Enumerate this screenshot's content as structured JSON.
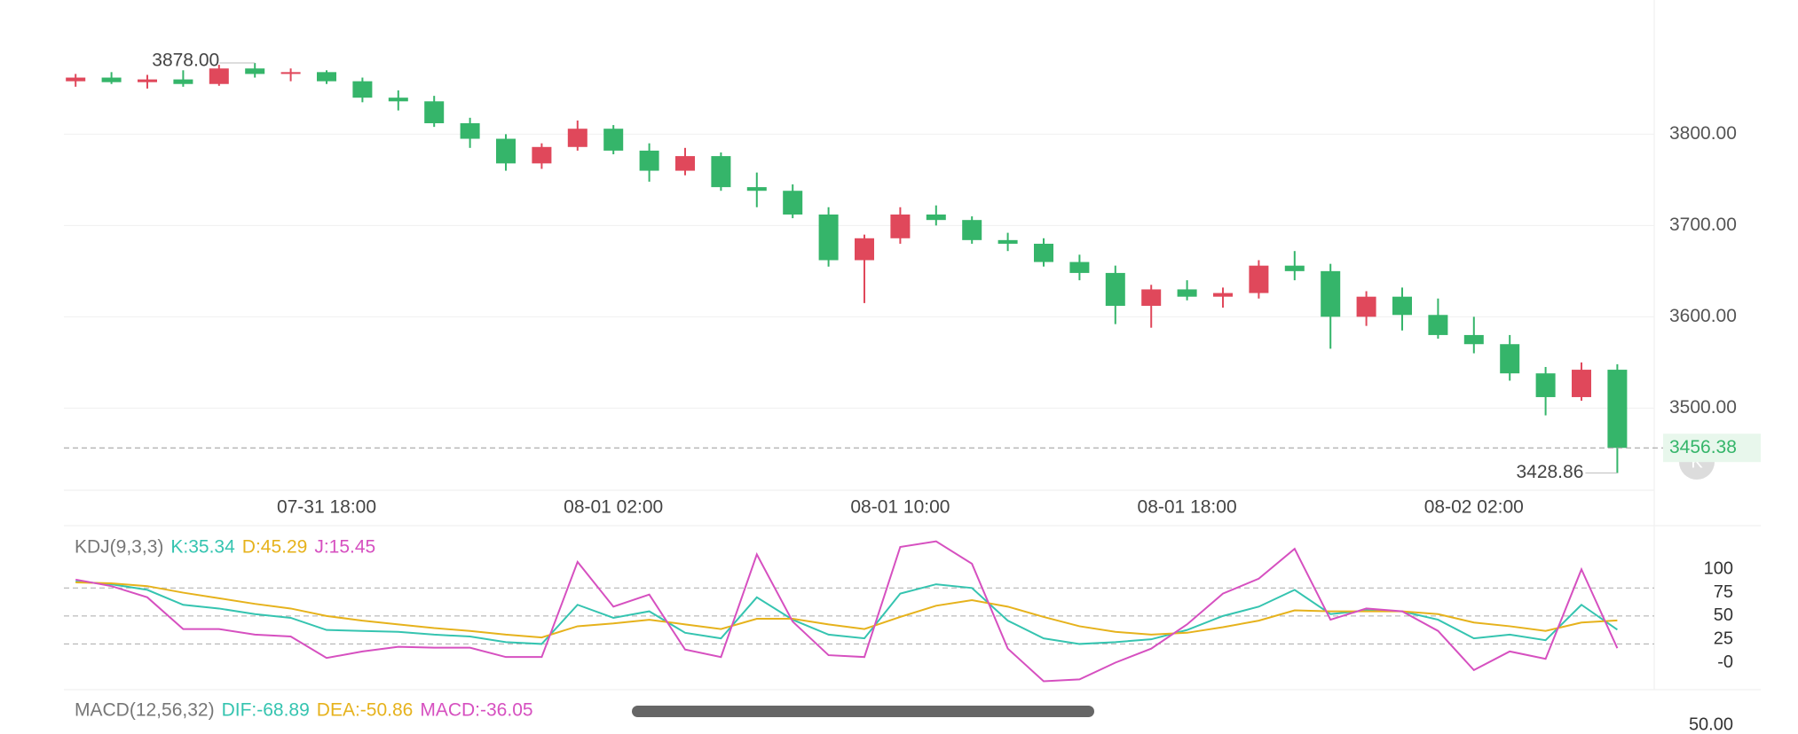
{
  "chart_data": [
    {
      "type": "candlestick",
      "categories": [
        null,
        null,
        null,
        null,
        null,
        null,
        null,
        "07-31 18:00",
        null,
        null,
        null,
        null,
        null,
        null,
        null,
        "08-01 02:00",
        null,
        null,
        null,
        null,
        null,
        null,
        null,
        "08-01 10:00",
        null,
        null,
        null,
        null,
        null,
        null,
        null,
        "08-01 18:00",
        null,
        null,
        null,
        null,
        null,
        null,
        null,
        "08-02 02:00",
        null,
        null,
        null,
        null
      ],
      "open": [
        3858,
        3862,
        3857,
        3860,
        3855,
        3872,
        3866,
        3868,
        3858,
        3840,
        3836,
        3812,
        3795,
        3768,
        3786,
        3806,
        3782,
        3760,
        3776,
        3742,
        3738,
        3712,
        3662,
        3686,
        3712,
        3706,
        3684,
        3680,
        3660,
        3648,
        3612,
        3630,
        3622,
        3626,
        3656,
        3650,
        3600,
        3622,
        3602,
        3580,
        3570,
        3538,
        3512,
        3542
      ],
      "high": [
        3866,
        3868,
        3865,
        3870,
        3876,
        3878,
        3872,
        3870,
        3862,
        3848,
        3842,
        3818,
        3800,
        3790,
        3815,
        3810,
        3790,
        3785,
        3780,
        3758,
        3745,
        3720,
        3690,
        3720,
        3722,
        3710,
        3692,
        3686,
        3668,
        3656,
        3635,
        3640,
        3632,
        3662,
        3672,
        3658,
        3628,
        3632,
        3620,
        3600,
        3580,
        3545,
        3550,
        3548
      ],
      "low": [
        3852,
        3855,
        3850,
        3852,
        3853,
        3862,
        3858,
        3855,
        3835,
        3826,
        3808,
        3785,
        3760,
        3762,
        3782,
        3778,
        3748,
        3755,
        3738,
        3720,
        3708,
        3655,
        3615,
        3680,
        3700,
        3680,
        3672,
        3655,
        3640,
        3592,
        3588,
        3618,
        3610,
        3620,
        3640,
        3565,
        3590,
        3585,
        3576,
        3560,
        3530,
        3492,
        3508,
        3428.86
      ],
      "close": [
        3862,
        3857,
        3860,
        3855,
        3872,
        3866,
        3868,
        3858,
        3840,
        3836,
        3812,
        3795,
        3768,
        3786,
        3806,
        3782,
        3760,
        3776,
        3742,
        3738,
        3712,
        3662,
        3686,
        3712,
        3706,
        3684,
        3680,
        3660,
        3648,
        3612,
        3630,
        3622,
        3626,
        3656,
        3650,
        3600,
        3622,
        3602,
        3580,
        3570,
        3538,
        3512,
        3542,
        3456.38
      ],
      "up_color": "#e0485b",
      "down_color": "#35b56a",
      "ylim": [
        3410,
        3947
      ],
      "yticks": [
        {
          "value": 3500,
          "label": "3500.00"
        },
        {
          "value": 3600,
          "label": "3600.00"
        },
        {
          "value": 3700,
          "label": "3700.00"
        },
        {
          "value": 3800,
          "label": "3800.00"
        }
      ],
      "grid": true,
      "annotations": [
        {
          "value": 3878,
          "label": "3878.00"
        },
        {
          "value": 3428.86,
          "label": "3428.86"
        }
      ],
      "last_price": {
        "value": 3456.38,
        "label": "3456.38"
      }
    },
    {
      "type": "line",
      "title": "KDJ(9,3,3)",
      "series": [
        {
          "name": "K:35.34",
          "color": "#35c4b0",
          "values": [
            87,
            84,
            78,
            62,
            58,
            52,
            48,
            35,
            34,
            33,
            30,
            28,
            22,
            20,
            62,
            48,
            55,
            32,
            26,
            70,
            46,
            30,
            26,
            74,
            84,
            80,
            45,
            26,
            20,
            22,
            25,
            35,
            50,
            60,
            78,
            52,
            56,
            55,
            46,
            26,
            30,
            24,
            62,
            35.34
          ]
        },
        {
          "name": "D:45.29",
          "color": "#e6b21c",
          "values": [
            86,
            85,
            82,
            75,
            69,
            63,
            58,
            50,
            45,
            41,
            37,
            34,
            30,
            27,
            39,
            42,
            46,
            41,
            36,
            47,
            47,
            41,
            36,
            49,
            61,
            67,
            60,
            49,
            39,
            33,
            30,
            32,
            38,
            45,
            56,
            55,
            55,
            55,
            52,
            43,
            39,
            34,
            43,
            45.29
          ]
        },
        {
          "name": "J:15.45",
          "color": "#d650c0",
          "values": [
            89,
            82,
            70,
            36,
            36,
            30,
            28,
            5,
            12,
            17,
            16,
            16,
            6,
            6,
            108,
            60,
            73,
            14,
            6,
            116,
            44,
            8,
            6,
            124,
            130,
            106,
            15,
            -20,
            -18,
            0,
            15,
            41,
            74,
            90,
            122,
            46,
            58,
            55,
            34,
            -8,
            12,
            4,
            100,
            15.45
          ]
        }
      ],
      "ylim": [
        -29,
        143
      ],
      "yticks": [
        {
          "value": 0,
          "label": "-0"
        },
        25,
        50,
        75,
        100
      ],
      "ref_lines": [
        20,
        50,
        80
      ]
    },
    {
      "type": "bar",
      "title": "MACD(12,56,32)",
      "series": [
        {
          "name": "DIF:-68.89",
          "color": "#35c4b0"
        },
        {
          "name": "DEA:-50.86",
          "color": "#e6b21c"
        },
        {
          "name": "MACD:-36.05",
          "color": "#d650c0"
        }
      ],
      "ylim": [
        -100,
        60
      ],
      "yticks": [
        {
          "value": 50,
          "label": "50.00"
        }
      ]
    }
  ],
  "controls": {
    "button": "K"
  }
}
